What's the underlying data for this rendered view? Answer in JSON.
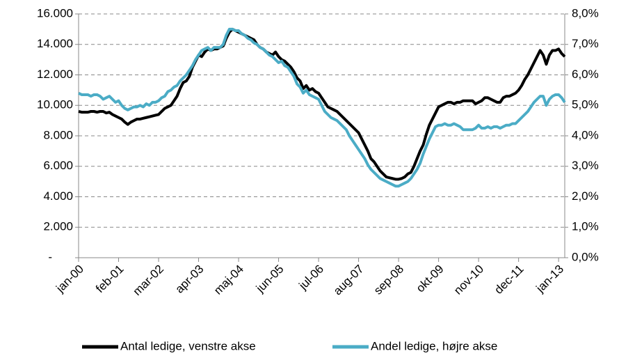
{
  "chart_data": {
    "type": "line",
    "categories": [
      "jan-00",
      null,
      null,
      null,
      null,
      null,
      null,
      null,
      null,
      null,
      null,
      null,
      null,
      "feb-01",
      null,
      null,
      null,
      null,
      null,
      null,
      null,
      null,
      null,
      null,
      null,
      null,
      "mar-02",
      null,
      null,
      null,
      null,
      null,
      null,
      null,
      null,
      null,
      null,
      null,
      null,
      "apr-03",
      null,
      null,
      null,
      null,
      null,
      null,
      null,
      null,
      null,
      null,
      null,
      null,
      "maj-04",
      null,
      null,
      null,
      null,
      null,
      null,
      null,
      null,
      null,
      null,
      null,
      null,
      "jun-05",
      null,
      null,
      null,
      null,
      null,
      null,
      null,
      null,
      null,
      null,
      null,
      null,
      "jul-06",
      null,
      null,
      null,
      null,
      null,
      null,
      null,
      null,
      null,
      null,
      null,
      null,
      "aug-07",
      null,
      null,
      null,
      null,
      null,
      null,
      null,
      null,
      null,
      null,
      null,
      null,
      "sep-08",
      null,
      null,
      null,
      null,
      null,
      null,
      null,
      null,
      null,
      null,
      null,
      null,
      "okt-09",
      null,
      null,
      null,
      null,
      null,
      null,
      null,
      null,
      null,
      null,
      null,
      null,
      "nov-10",
      null,
      null,
      null,
      null,
      null,
      null,
      null,
      null,
      null,
      null,
      null,
      null,
      "dec-11",
      null,
      null,
      null,
      null,
      null,
      null,
      null,
      null,
      null,
      null,
      null,
      null,
      "jan-13",
      null,
      null
    ],
    "series": [
      {
        "name": "Antal ledige, venstre akse",
        "color": "#000000",
        "axis": "y",
        "values": [
          9600,
          9550,
          9550,
          9550,
          9600,
          9600,
          9550,
          9600,
          9600,
          9500,
          9550,
          9400,
          9300,
          9200,
          9100,
          8900,
          8750,
          8900,
          9000,
          9100,
          9100,
          9150,
          9200,
          9250,
          9300,
          9350,
          9400,
          9600,
          9800,
          9900,
          10000,
          10300,
          10600,
          11100,
          11500,
          11600,
          11900,
          12500,
          12900,
          13300,
          13200,
          13500,
          13700,
          13600,
          13700,
          13700,
          13800,
          13900,
          14400,
          14800,
          15000,
          14900,
          14800,
          14700,
          14600,
          14500,
          14400,
          14300,
          14000,
          13800,
          13700,
          13500,
          13400,
          13300,
          13500,
          13200,
          13000,
          12900,
          12700,
          12500,
          12200,
          11800,
          11600,
          11100,
          11300,
          11000,
          11100,
          10900,
          10800,
          10500,
          10200,
          9900,
          9800,
          9700,
          9600,
          9400,
          9200,
          9000,
          8800,
          8600,
          8400,
          8200,
          7800,
          7400,
          7000,
          6500,
          6300,
          6000,
          5700,
          5500,
          5300,
          5250,
          5200,
          5150,
          5150,
          5200,
          5300,
          5500,
          5600,
          6000,
          6500,
          7000,
          7400,
          8100,
          8700,
          9100,
          9500,
          9900,
          10000,
          10100,
          10200,
          10200,
          10100,
          10200,
          10200,
          10300,
          10300,
          10300,
          10300,
          10100,
          10200,
          10300,
          10500,
          10500,
          10400,
          10300,
          10200,
          10200,
          10500,
          10600,
          10600,
          10700,
          10800,
          11000,
          11300,
          11700,
          12000,
          12400,
          12800,
          13200,
          13600,
          13300,
          12700,
          13300,
          13600,
          13600,
          13700,
          13400,
          13200
        ]
      },
      {
        "name": "Andel ledige, højre akse",
        "color": "#4bacc6",
        "axis": "y2",
        "values": [
          5.4,
          5.35,
          5.35,
          5.35,
          5.3,
          5.35,
          5.35,
          5.3,
          5.2,
          5.25,
          5.3,
          5.2,
          5.1,
          5.15,
          5.0,
          4.9,
          4.85,
          4.9,
          4.95,
          4.95,
          5.0,
          4.95,
          5.05,
          5.0,
          5.1,
          5.1,
          5.15,
          5.25,
          5.3,
          5.45,
          5.5,
          5.6,
          5.65,
          5.8,
          5.9,
          6.0,
          6.15,
          6.3,
          6.5,
          6.65,
          6.8,
          6.85,
          6.9,
          6.8,
          6.9,
          6.9,
          6.9,
          7.0,
          7.3,
          7.5,
          7.5,
          7.45,
          7.45,
          7.35,
          7.3,
          7.2,
          7.15,
          7.05,
          7.0,
          6.9,
          6.85,
          6.75,
          6.65,
          6.6,
          6.5,
          6.4,
          6.45,
          6.3,
          6.25,
          6.1,
          5.95,
          5.7,
          5.6,
          5.4,
          5.5,
          5.35,
          5.3,
          5.25,
          5.2,
          5.0,
          4.8,
          4.7,
          4.6,
          4.55,
          4.5,
          4.4,
          4.3,
          4.2,
          4.0,
          3.85,
          3.7,
          3.55,
          3.4,
          3.25,
          3.05,
          2.9,
          2.8,
          2.7,
          2.6,
          2.55,
          2.5,
          2.45,
          2.4,
          2.35,
          2.35,
          2.4,
          2.45,
          2.5,
          2.6,
          2.75,
          2.9,
          3.1,
          3.4,
          3.65,
          3.9,
          4.1,
          4.3,
          4.35,
          4.35,
          4.4,
          4.35,
          4.35,
          4.4,
          4.35,
          4.3,
          4.2,
          4.2,
          4.2,
          4.2,
          4.25,
          4.35,
          4.25,
          4.25,
          4.3,
          4.25,
          4.3,
          4.3,
          4.25,
          4.3,
          4.35,
          4.35,
          4.4,
          4.4,
          4.5,
          4.6,
          4.7,
          4.8,
          4.95,
          5.1,
          5.2,
          5.3,
          5.3,
          5.0,
          5.2,
          5.3,
          5.35,
          5.35,
          5.25,
          5.1
        ]
      }
    ],
    "ylim": [
      0,
      16000
    ],
    "yticks": [
      {
        "value": 0,
        "label": "-"
      },
      {
        "value": 2000,
        "label": "2.000"
      },
      {
        "value": 4000,
        "label": "4.000"
      },
      {
        "value": 6000,
        "label": "6.000"
      },
      {
        "value": 8000,
        "label": "8.000"
      },
      {
        "value": 10000,
        "label": "10.000"
      },
      {
        "value": 12000,
        "label": "12.000"
      },
      {
        "value": 14000,
        "label": "14.000"
      },
      {
        "value": 16000,
        "label": "16.000"
      }
    ],
    "y2lim": [
      0,
      8
    ],
    "y2ticks": [
      {
        "value": 0,
        "label": "0,0%"
      },
      {
        "value": 1,
        "label": "1,0%"
      },
      {
        "value": 2,
        "label": "2,0%"
      },
      {
        "value": 3,
        "label": "3,0%"
      },
      {
        "value": 4,
        "label": "4,0%"
      },
      {
        "value": 5,
        "label": "5,0%"
      },
      {
        "value": 6,
        "label": "6,0%"
      },
      {
        "value": 7,
        "label": "7,0%"
      },
      {
        "value": 8,
        "label": "8,0%"
      }
    ],
    "grid": true,
    "legend": "bottom"
  }
}
